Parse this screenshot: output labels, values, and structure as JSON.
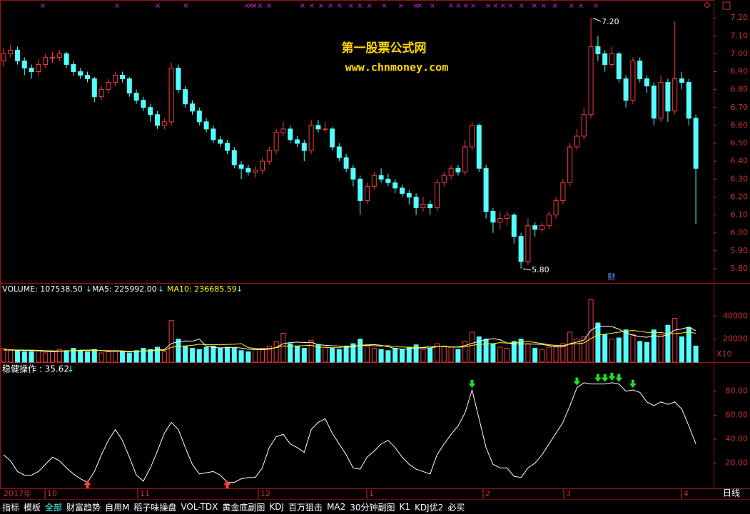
{
  "watermark": {
    "title": "第一股票公式网",
    "url": "www.chnmoney.com"
  },
  "price_panel": {
    "ylim": [
      5.72,
      7.3
    ],
    "yticks": [
      {
        "value": 7.2,
        "label": "7.20"
      },
      {
        "value": 7.1,
        "label": "7.10"
      },
      {
        "value": 7.0,
        "label": "7.00"
      },
      {
        "value": 6.9,
        "label": "6.90"
      },
      {
        "value": 6.8,
        "label": "6.80"
      },
      {
        "value": 6.7,
        "label": "6.70"
      },
      {
        "value": 6.6,
        "label": "6.60"
      },
      {
        "value": 6.5,
        "label": "6.50"
      },
      {
        "value": 6.4,
        "label": "6.40"
      },
      {
        "value": 6.3,
        "label": "6.30"
      },
      {
        "value": 6.2,
        "label": "6.20"
      },
      {
        "value": 6.1,
        "label": "6.10"
      },
      {
        "value": 6.0,
        "label": "6.00"
      },
      {
        "value": 5.9,
        "label": "5.90"
      },
      {
        "value": 5.8,
        "label": "5.80"
      }
    ],
    "high_label": "7.20",
    "low_label": "5.80",
    "marker": "财",
    "candles": [
      [
        6.96,
        7.03,
        6.93,
        7.0
      ],
      [
        7.0,
        7.05,
        6.98,
        7.02
      ],
      [
        7.02,
        7.04,
        6.94,
        6.96
      ],
      [
        6.96,
        6.98,
        6.88,
        6.92
      ],
      [
        6.92,
        6.94,
        6.86,
        6.9
      ],
      [
        6.9,
        6.97,
        6.88,
        6.94
      ],
      [
        6.94,
        7.0,
        6.92,
        6.98
      ],
      [
        6.98,
        7.01,
        6.95,
        6.98
      ],
      [
        6.98,
        7.02,
        6.96,
        7.0
      ],
      [
        7.0,
        7.01,
        6.92,
        6.94
      ],
      [
        6.94,
        6.96,
        6.88,
        6.9
      ],
      [
        6.9,
        6.92,
        6.86,
        6.88
      ],
      [
        6.88,
        6.9,
        6.84,
        6.86
      ],
      [
        6.86,
        6.87,
        6.73,
        6.76
      ],
      [
        6.76,
        6.82,
        6.74,
        6.8
      ],
      [
        6.8,
        6.86,
        6.78,
        6.84
      ],
      [
        6.84,
        6.9,
        6.82,
        6.88
      ],
      [
        6.88,
        6.9,
        6.84,
        6.86
      ],
      [
        6.86,
        6.87,
        6.76,
        6.78
      ],
      [
        6.78,
        6.8,
        6.72,
        6.74
      ],
      [
        6.74,
        6.76,
        6.68,
        6.7
      ],
      [
        6.7,
        6.72,
        6.62,
        6.66
      ],
      [
        6.66,
        6.68,
        6.58,
        6.6
      ],
      [
        6.6,
        6.64,
        6.58,
        6.62
      ],
      [
        6.62,
        6.95,
        6.6,
        6.92
      ],
      [
        6.92,
        6.94,
        6.78,
        6.8
      ],
      [
        6.8,
        6.82,
        6.7,
        6.72
      ],
      [
        6.72,
        6.74,
        6.66,
        6.68
      ],
      [
        6.68,
        6.7,
        6.6,
        6.62
      ],
      [
        6.62,
        6.64,
        6.56,
        6.58
      ],
      [
        6.58,
        6.6,
        6.5,
        6.52
      ],
      [
        6.52,
        6.54,
        6.48,
        6.5
      ],
      [
        6.5,
        6.52,
        6.44,
        6.46
      ],
      [
        6.46,
        6.48,
        6.36,
        6.38
      ],
      [
        6.38,
        6.4,
        6.3,
        6.36
      ],
      [
        6.36,
        6.38,
        6.32,
        6.34
      ],
      [
        6.34,
        6.37,
        6.31,
        6.35
      ],
      [
        6.35,
        6.42,
        6.33,
        6.4
      ],
      [
        6.4,
        6.48,
        6.38,
        6.46
      ],
      [
        6.46,
        6.58,
        6.44,
        6.56
      ],
      [
        6.56,
        6.62,
        6.54,
        6.58
      ],
      [
        6.58,
        6.6,
        6.5,
        6.52
      ],
      [
        6.52,
        6.54,
        6.48,
        6.5
      ],
      [
        6.5,
        6.52,
        6.4,
        6.46
      ],
      [
        6.46,
        6.63,
        6.44,
        6.6
      ],
      [
        6.6,
        6.63,
        6.56,
        6.58
      ],
      [
        6.58,
        6.62,
        6.56,
        6.58
      ],
      [
        6.58,
        6.59,
        6.46,
        6.48
      ],
      [
        6.48,
        6.5,
        6.4,
        6.42
      ],
      [
        6.42,
        6.44,
        6.34,
        6.36
      ],
      [
        6.36,
        6.38,
        6.26,
        6.3
      ],
      [
        6.3,
        6.32,
        6.1,
        6.18
      ],
      [
        6.18,
        6.28,
        6.16,
        6.26
      ],
      [
        6.26,
        6.34,
        6.24,
        6.32
      ],
      [
        6.32,
        6.36,
        6.28,
        6.3
      ],
      [
        6.3,
        6.33,
        6.26,
        6.28
      ],
      [
        6.28,
        6.3,
        6.22,
        6.25
      ],
      [
        6.25,
        6.27,
        6.2,
        6.22
      ],
      [
        6.22,
        6.24,
        6.16,
        6.2
      ],
      [
        6.2,
        6.22,
        6.1,
        6.14
      ],
      [
        6.14,
        6.2,
        6.12,
        6.16
      ],
      [
        6.16,
        6.18,
        6.1,
        6.14
      ],
      [
        6.14,
        6.3,
        6.12,
        6.28
      ],
      [
        6.28,
        6.34,
        6.26,
        6.32
      ],
      [
        6.32,
        6.38,
        6.3,
        6.36
      ],
      [
        6.36,
        6.38,
        6.32,
        6.34
      ],
      [
        6.34,
        6.52,
        6.32,
        6.48
      ],
      [
        6.48,
        6.62,
        6.46,
        6.6
      ],
      [
        6.6,
        6.61,
        6.34,
        6.36
      ],
      [
        6.36,
        6.38,
        6.08,
        6.12
      ],
      [
        6.12,
        6.14,
        6.0,
        6.06
      ],
      [
        6.06,
        6.12,
        6.02,
        6.08
      ],
      [
        6.08,
        6.12,
        6.04,
        6.1
      ],
      [
        6.1,
        6.11,
        5.94,
        5.98
      ],
      [
        5.98,
        6.0,
        5.8,
        5.84
      ],
      [
        5.84,
        6.08,
        5.82,
        6.04
      ],
      [
        6.04,
        6.06,
        5.98,
        6.02
      ],
      [
        6.02,
        6.06,
        6.0,
        6.04
      ],
      [
        6.04,
        6.12,
        6.02,
        6.1
      ],
      [
        6.1,
        6.2,
        6.08,
        6.18
      ],
      [
        6.18,
        6.3,
        6.16,
        6.28
      ],
      [
        6.28,
        6.5,
        6.26,
        6.48
      ],
      [
        6.48,
        6.58,
        6.46,
        6.54
      ],
      [
        6.54,
        6.7,
        6.52,
        6.66
      ],
      [
        6.66,
        7.2,
        6.64,
        7.04
      ],
      [
        7.04,
        7.1,
        6.96,
        7.0
      ],
      [
        7.0,
        7.02,
        6.9,
        6.94
      ],
      [
        6.94,
        7.04,
        6.92,
        7.0
      ],
      [
        7.0,
        7.01,
        6.84,
        6.86
      ],
      [
        6.86,
        6.88,
        6.7,
        6.74
      ],
      [
        6.74,
        6.98,
        6.72,
        6.96
      ],
      [
        6.96,
        6.98,
        6.84,
        6.86
      ],
      [
        6.86,
        6.88,
        6.78,
        6.82
      ],
      [
        6.82,
        6.84,
        6.6,
        6.64
      ],
      [
        6.64,
        6.88,
        6.62,
        6.84
      ],
      [
        6.84,
        6.86,
        6.62,
        6.68
      ],
      [
        6.68,
        7.18,
        6.66,
        6.86
      ],
      [
        6.86,
        6.9,
        6.8,
        6.84
      ],
      [
        6.84,
        6.86,
        6.6,
        6.64
      ],
      [
        6.64,
        6.66,
        6.05,
        6.36
      ]
    ]
  },
  "volume_panel": {
    "label": "VOLUME: 107538.50",
    "ma5_label": "MA5: 225992.00",
    "ma10_label": "MA10: 236685.59",
    "scale_label": "X10",
    "ylim": [
      0,
      68000
    ],
    "yticks": [
      40000,
      20000
    ],
    "values": [
      12000,
      11000,
      10000,
      9000,
      9000,
      10000,
      8000,
      9000,
      11000,
      10000,
      12000,
      10000,
      9000,
      11000,
      8000,
      9000,
      10000,
      9000,
      8000,
      10000,
      12000,
      11000,
      13000,
      9000,
      36000,
      20000,
      14000,
      12000,
      11000,
      13000,
      14000,
      12000,
      13000,
      12000,
      10000,
      9000,
      11000,
      12000,
      14000,
      18000,
      25000,
      16000,
      14000,
      12000,
      19000,
      15000,
      13000,
      12000,
      11000,
      14000,
      16000,
      20000,
      14000,
      12000,
      11000,
      10000,
      12000,
      11000,
      13000,
      15000,
      11000,
      12000,
      16000,
      14000,
      13000,
      11000,
      18000,
      26000,
      22000,
      20000,
      16000,
      13000,
      12000,
      18000,
      20000,
      16000,
      12000,
      11000,
      13000,
      14000,
      16000,
      26000,
      20000,
      22000,
      54000,
      34000,
      24000,
      20000,
      21000,
      28000,
      24000,
      18000,
      17000,
      28000,
      24000,
      32000,
      38000,
      22000,
      30000,
      14000
    ],
    "ma5": [
      10500,
      10400,
      10200,
      10100,
      10000,
      9800,
      9300,
      9000,
      9400,
      9600,
      10000,
      10400,
      10400,
      10600,
      10000,
      9400,
      9400,
      9400,
      9000,
      9200,
      9800,
      10000,
      10800,
      11000,
      16200,
      17800,
      18400,
      18200,
      20000,
      14000,
      12800,
      12400,
      12600,
      12800,
      12200,
      11200,
      11000,
      10800,
      11200,
      12800,
      16000,
      17000,
      17400,
      17000,
      17200,
      15200,
      14600,
      14200,
      14000,
      13000,
      13200,
      14600,
      15000,
      15200,
      14600,
      13400,
      11800,
      11200,
      11400,
      12200,
      12400,
      12400,
      13400,
      13600,
      13200,
      13200,
      14400,
      16400,
      18000,
      19400,
      20400,
      19400,
      16600,
      15800,
      15800,
      15800,
      15600,
      15400,
      14400,
      13200,
      13200,
      16000,
      17400,
      19200,
      27600,
      31200,
      31200,
      30800,
      28600,
      25400,
      23400,
      22200,
      21600,
      23000,
      22200,
      23800,
      27800,
      28800,
      30400,
      27200
    ],
    "ma10": [
      10800,
      10700,
      10600,
      10500,
      10400,
      10300,
      10000,
      9800,
      9700,
      9800,
      9900,
      10000,
      10100,
      10200,
      10100,
      10000,
      9900,
      9800,
      9400,
      9400,
      9600,
      9700,
      10100,
      10200,
      12900,
      13600,
      14100,
      14600,
      15500,
      15100,
      15300,
      15000,
      15400,
      15500,
      16100,
      12600,
      11900,
      11600,
      11900,
      12500,
      14100,
      14000,
      14000,
      14400,
      14700,
      13200,
      12800,
      12500,
      12600,
      13600,
      14100,
      14400,
      14500,
      14200,
      14100,
      14300,
      13400,
      13100,
      13000,
      12600,
      12800,
      13500,
      13600,
      13400,
      13000,
      13000,
      13200,
      14600,
      15400,
      15800,
      16000,
      16900,
      16500,
      16800,
      17000,
      18100,
      17000,
      16200,
      15100,
      14500,
      14400,
      15600,
      16000,
      16600,
      20500,
      23500,
      24300,
      25100,
      26000,
      26700,
      27500,
      26700,
      25800,
      25800,
      25700,
      24600,
      24700,
      25300,
      26300,
      25000
    ]
  },
  "indicator_panel": {
    "label": "稳健操作 : 35.62",
    "ylim": [
      -1,
      103
    ],
    "yticks": [
      {
        "value": 80,
        "label": "80.00"
      },
      {
        "value": 60,
        "label": "60.00"
      },
      {
        "value": 40,
        "label": "40.00"
      },
      {
        "value": 20,
        "label": "20.00"
      }
    ],
    "values": [
      27,
      22,
      13,
      10,
      10,
      13,
      19,
      25,
      22,
      16,
      11,
      7,
      4,
      13,
      27,
      39,
      48,
      39,
      25,
      10,
      5,
      16,
      30,
      45,
      54,
      48,
      33,
      19,
      11,
      12,
      13,
      10,
      4,
      4,
      7,
      8,
      8,
      16,
      33,
      42,
      44,
      36,
      33,
      29,
      48,
      54,
      57,
      45,
      36,
      27,
      16,
      15,
      25,
      30,
      36,
      39,
      33,
      25,
      19,
      15,
      13,
      11,
      27,
      36,
      44,
      51,
      62,
      81,
      57,
      33,
      19,
      16,
      16,
      9,
      8,
      16,
      20,
      27,
      36,
      45,
      54,
      68,
      83,
      87,
      86,
      86,
      86,
      87,
      86,
      80,
      81,
      79,
      71,
      68,
      71,
      69,
      71,
      65,
      51,
      36
    ]
  },
  "date_axis": {
    "labels": [
      "2017年",
      "10",
      "11",
      "12",
      "1",
      "2",
      "3",
      "4"
    ],
    "period": "日线"
  },
  "tabs": [
    "指标",
    "模板",
    "全部",
    "财富趋势",
    "自用M",
    "稻子味操盘",
    "VOL-TDX",
    "黄金底副图",
    "KDJ",
    "百万狙击",
    "MA2",
    "30分钟副图",
    "K1",
    "KDJ优2",
    "必买"
  ]
}
